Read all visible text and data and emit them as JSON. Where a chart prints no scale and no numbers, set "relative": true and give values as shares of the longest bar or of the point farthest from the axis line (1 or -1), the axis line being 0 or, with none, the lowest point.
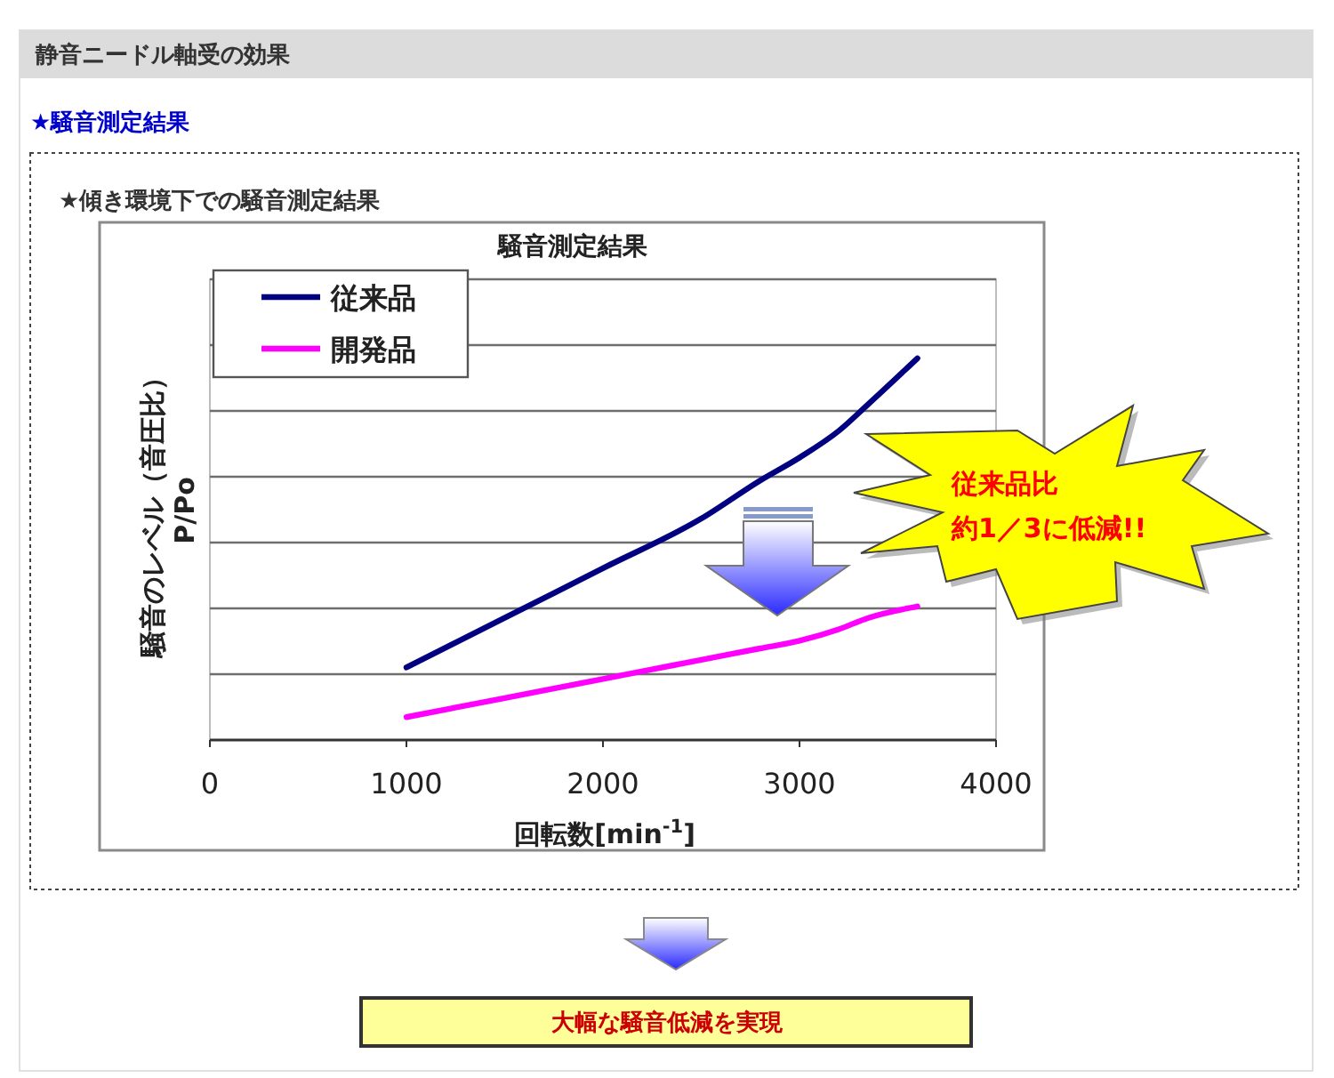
{
  "chart_data": {
    "type": "line",
    "title": "騒音測定結果",
    "subtitle": "★傾き環境下での騒音測定結果",
    "xlabel": "回転数[min$^{-1}$]",
    "ylabel": "騒音のレベル（音圧比）\nP/Po",
    "relative": true,
    "x": [
      1000,
      1500,
      2000,
      2500,
      2800,
      3000,
      3200,
      3350,
      3600
    ],
    "series": [
      {
        "name": "従来品",
        "color": "#000080",
        "values": [
          0.19,
          0.32,
          0.45,
          0.58,
          0.68,
          0.74,
          0.81,
          0.88,
          1
        ]
      },
      {
        "name": "開発品",
        "color": "#ff00ff",
        "values": [
          0.06,
          0.11,
          0.16,
          0.21,
          0.24,
          0.26,
          0.29,
          0.32,
          0.35
        ]
      }
    ],
    "xlim": [
      0,
      4000
    ],
    "xticks": [
      0,
      1000,
      2000,
      3000,
      4000
    ],
    "grid": "y",
    "legend": "top left",
    "annotations": [
      "静音ニードル軸受の効果",
      "★騒音測定結果",
      "従来品比",
      "約1／3に低減!!",
      "大幅な騒音低減を実現"
    ]
  }
}
